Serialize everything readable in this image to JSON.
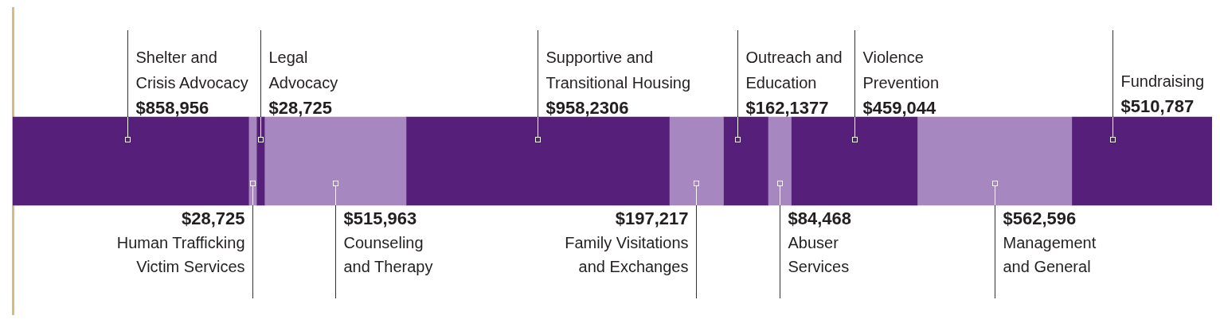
{
  "chart_data": {
    "type": "bar",
    "orientation": "horizontal",
    "stacked": true,
    "categories": [
      null
    ],
    "series": [
      {
        "name": "Shelter and Crisis Advocacy",
        "color": "#561f7a",
        "values": [
          858956
        ],
        "value_labels": [
          "$858,956"
        ]
      },
      {
        "name": "Human Trafficking Victim Services",
        "color": "#a687bf",
        "values": [
          28725
        ],
        "value_labels": [
          "$28,725"
        ]
      },
      {
        "name": "Legal Advocacy",
        "color": "#561f7a",
        "values": [
          28725
        ],
        "value_labels": [
          "$28,725"
        ]
      },
      {
        "name": "Counseling and Therapy",
        "color": "#a687bf",
        "values": [
          515963
        ],
        "value_labels": [
          "$515,963"
        ]
      },
      {
        "name": "Supportive and Transitional Housing",
        "color": "#561f7a",
        "values": [
          958230
        ],
        "value_labels": [
          "$958,2306"
        ]
      },
      {
        "name": "Family Visitations and Exchanges",
        "color": "#a687bf",
        "values": [
          197217
        ],
        "value_labels": [
          "$197,217"
        ]
      },
      {
        "name": "Outreach and Education",
        "color": "#561f7a",
        "values": [
          162137
        ],
        "value_labels": [
          "$162,1377"
        ]
      },
      {
        "name": "Abuser Services",
        "color": "#a687bf",
        "values": [
          84468
        ],
        "value_labels": [
          "$84,468"
        ]
      },
      {
        "name": "Violence Prevention",
        "color": "#561f7a",
        "values": [
          459044
        ],
        "value_labels": [
          "$459,044"
        ]
      },
      {
        "name": "Management and General",
        "color": "#a687bf",
        "values": [
          562596
        ],
        "value_labels": [
          "$562,596"
        ]
      },
      {
        "name": "Fundraising",
        "color": "#561f7a",
        "values": [
          510787
        ],
        "value_labels": [
          "$510,787"
        ]
      }
    ]
  }
}
